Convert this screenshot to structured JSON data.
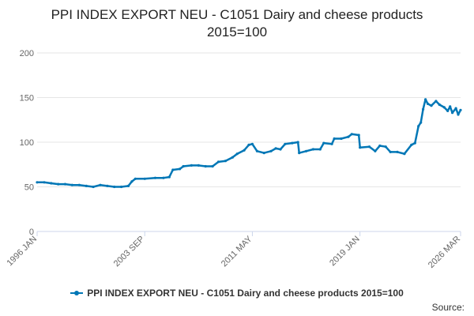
{
  "chart_data": {
    "type": "line",
    "title_line1": "PPI INDEX EXPORT NEU - C1051 Dairy and cheese products",
    "title_line2": "2015=100",
    "xlabel": "",
    "ylabel": "",
    "ylim": [
      0,
      200
    ],
    "yticks": [
      0,
      50,
      100,
      150,
      200
    ],
    "xlim": [
      "1996-01",
      "2026-03"
    ],
    "xtick_labels": [
      "1996 JAN",
      "2003 SEP",
      "2011 MAY",
      "2019 JAN",
      "2026 MAR"
    ],
    "xtick_dates": [
      "1996-01",
      "2003-09",
      "2011-05",
      "2019-01",
      "2026-03"
    ],
    "grid": true,
    "legend_position": "bottom",
    "color": "#0077b6",
    "series": [
      {
        "name": "PPI INDEX EXPORT NEU - C1051 Dairy and cheese products 2015=100",
        "points": [
          [
            "1996-01",
            55
          ],
          [
            "1996-07",
            55
          ],
          [
            "1997-01",
            54
          ],
          [
            "1997-07",
            53
          ],
          [
            "1998-01",
            53
          ],
          [
            "1998-07",
            52
          ],
          [
            "1999-01",
            52
          ],
          [
            "1999-07",
            51
          ],
          [
            "2000-01",
            50
          ],
          [
            "2000-07",
            52
          ],
          [
            "2001-01",
            51
          ],
          [
            "2001-07",
            50
          ],
          [
            "2002-01",
            50
          ],
          [
            "2002-07",
            51
          ],
          [
            "2002-10",
            56
          ],
          [
            "2003-01",
            59
          ],
          [
            "2003-09",
            59
          ],
          [
            "2004-06",
            60
          ],
          [
            "2005-01",
            60
          ],
          [
            "2005-06",
            61
          ],
          [
            "2005-09",
            69
          ],
          [
            "2006-03",
            70
          ],
          [
            "2006-06",
            73
          ],
          [
            "2007-01",
            74
          ],
          [
            "2007-07",
            74
          ],
          [
            "2008-01",
            73
          ],
          [
            "2008-07",
            73
          ],
          [
            "2008-12",
            78
          ],
          [
            "2009-06",
            79
          ],
          [
            "2009-12",
            83
          ],
          [
            "2010-04",
            87
          ],
          [
            "2010-10",
            91
          ],
          [
            "2011-02",
            97
          ],
          [
            "2011-05",
            98
          ],
          [
            "2011-09",
            90
          ],
          [
            "2012-03",
            88
          ],
          [
            "2012-09",
            90
          ],
          [
            "2013-01",
            93
          ],
          [
            "2013-05",
            92
          ],
          [
            "2013-09",
            98
          ],
          [
            "2014-03",
            99
          ],
          [
            "2014-08",
            100
          ],
          [
            "2014-09",
            88
          ],
          [
            "2015-03",
            90
          ],
          [
            "2015-09",
            92
          ],
          [
            "2016-03",
            92
          ],
          [
            "2016-06",
            99
          ],
          [
            "2017-01",
            98
          ],
          [
            "2017-03",
            104
          ],
          [
            "2017-09",
            104
          ],
          [
            "2018-03",
            106
          ],
          [
            "2018-06",
            109
          ],
          [
            "2018-12",
            108
          ],
          [
            "2019-01",
            94
          ],
          [
            "2019-09",
            95
          ],
          [
            "2020-02",
            90
          ],
          [
            "2020-06",
            96
          ],
          [
            "2020-11",
            95
          ],
          [
            "2021-03",
            89
          ],
          [
            "2021-09",
            89
          ],
          [
            "2022-03",
            87
          ],
          [
            "2022-09",
            97
          ],
          [
            "2022-12",
            99
          ],
          [
            "2023-03",
            118
          ],
          [
            "2023-05",
            122
          ],
          [
            "2023-07",
            137
          ],
          [
            "2023-09",
            148
          ],
          [
            "2023-11",
            143
          ],
          [
            "2024-02",
            141
          ],
          [
            "2024-06",
            146
          ],
          [
            "2024-09",
            142
          ],
          [
            "2025-01",
            139
          ],
          [
            "2025-04",
            135
          ],
          [
            "2025-06",
            140
          ],
          [
            "2025-08",
            133
          ],
          [
            "2025-11",
            138
          ],
          [
            "2026-01",
            131
          ],
          [
            "2026-03",
            136
          ]
        ]
      }
    ]
  },
  "source_label": "Source:"
}
